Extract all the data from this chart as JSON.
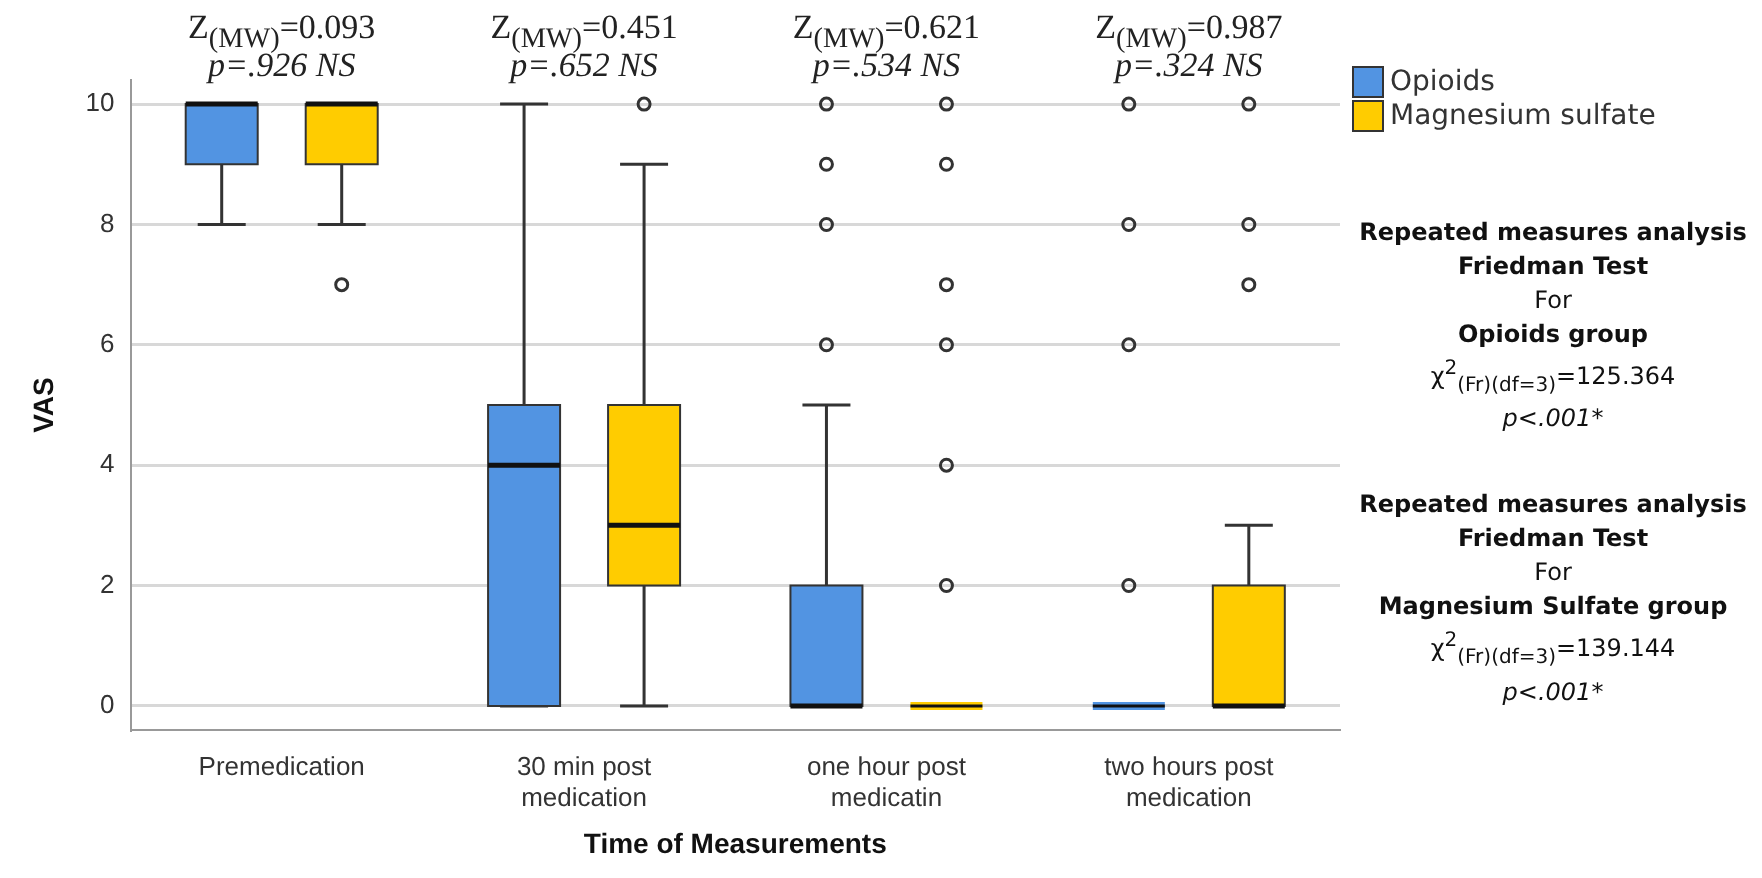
{
  "chart_data": {
    "type": "box",
    "xlabel": "Time of Measurements",
    "ylabel": "VAS",
    "categories": [
      "Premedication",
      "30 min post medication",
      "one hour post medicatin",
      "two hours post medication"
    ],
    "ylim": [
      -0.4,
      10.4
    ],
    "yticks": [
      0,
      2,
      4,
      6,
      8,
      10
    ],
    "grid": "y",
    "legend": "top right",
    "series": [
      {
        "name": "Opioids",
        "color": "#5294e2",
        "boxes": [
          {
            "low": 8,
            "q1": 9,
            "median": 10,
            "q3": 10,
            "high": 10
          },
          {
            "low": 0,
            "q1": 0,
            "median": 4,
            "q3": 5,
            "high": 10
          },
          {
            "low": 0,
            "q1": 0,
            "median": 0,
            "q3": 2,
            "high": 5,
            "outliers": [
              10,
              9,
              8,
              6
            ]
          },
          {
            "low": 0,
            "q1": 0,
            "median": 0,
            "q3": 0,
            "high": 0,
            "outliers": [
              10,
              8,
              6,
              2
            ]
          }
        ]
      },
      {
        "name": "Magnesium sulfate",
        "color": "#ffcc00",
        "boxes": [
          {
            "low": 8,
            "q1": 9,
            "median": 10,
            "q3": 10,
            "high": 10,
            "outliers": [
              7
            ]
          },
          {
            "low": 0,
            "q1": 2,
            "median": 3,
            "q3": 5,
            "high": 9,
            "outliers": [
              10
            ]
          },
          {
            "low": 0,
            "q1": 0,
            "median": 0,
            "q3": 0,
            "high": 0,
            "outliers": [
              10,
              9,
              7,
              6,
              4,
              2
            ]
          },
          {
            "low": 0,
            "q1": 0,
            "median": 0,
            "q3": 2,
            "high": 3,
            "outliers": [
              10,
              8,
              7
            ]
          }
        ]
      }
    ],
    "annotations": [
      "Z$_{(MW)}$=0.093",
      "p=.926 NS",
      "Z$_{(MW)}$=0.451",
      "p=.652 NS",
      "Z$_{(MW)}$=0.621",
      "p=.534 NS",
      "Z$_{(MW)}$=0.987",
      "p=.324 NS",
      "Repeated measures analysis",
      "Friedman Test",
      "For",
      "Opioids group",
      "χ$^{2}$$_{(Fr)(df=3)}$=125.364",
      "p<.001*",
      "Repeated measures analysis",
      "Friedman Test",
      "For",
      "Magnesium Sulfate group",
      "χ$^{2}$$_{(Fr)(df=3)}$=139.144",
      "p<.001*"
    ]
  }
}
